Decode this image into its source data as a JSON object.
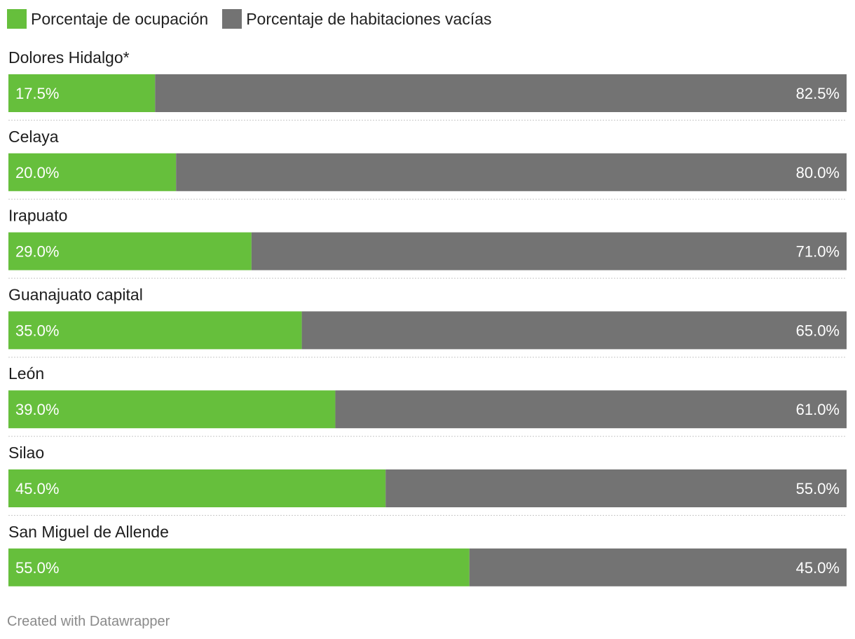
{
  "legend": {
    "occupied_label": "Porcentaje de ocupación",
    "empty_label": "Porcentaje de habitaciones vacías"
  },
  "colors": {
    "occupied": "#66bf3c",
    "empty": "#737373"
  },
  "credit": "Created with Datawrapper",
  "chart_data": {
    "type": "bar",
    "orientation": "horizontal",
    "stacked": true,
    "categories": [
      "Dolores Hidalgo*",
      "Celaya",
      "Irapuato",
      "Guanajuato capital",
      "León",
      "Silao",
      "San Miguel de Allende"
    ],
    "series": [
      {
        "name": "Porcentaje de ocupación",
        "values": [
          17.5,
          20.0,
          29.0,
          35.0,
          39.0,
          45.0,
          55.0
        ],
        "labels": [
          "17.5%",
          "20.0%",
          "29.0%",
          "35.0%",
          "39.0%",
          "45.0%",
          "55.0%"
        ]
      },
      {
        "name": "Porcentaje de habitaciones vacías",
        "values": [
          82.5,
          80.0,
          71.0,
          65.0,
          61.0,
          55.0,
          45.0
        ],
        "labels": [
          "82.5%",
          "80.0%",
          "71.0%",
          "65.0%",
          "61.0%",
          "55.0%",
          "45.0%"
        ]
      }
    ],
    "xlim": [
      0,
      100
    ],
    "legend_position": "top-left",
    "grid": false
  }
}
